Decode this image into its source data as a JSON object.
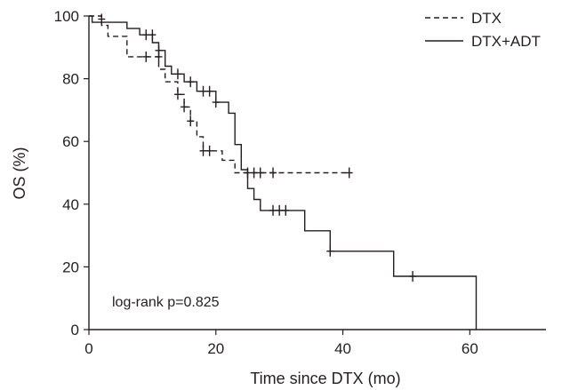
{
  "chart_data": {
    "type": "line",
    "step": true,
    "xlabel": "Time since DTX (mo)",
    "ylabel": "OS (%)",
    "xlim": [
      0,
      72
    ],
    "ylim": [
      0,
      100
    ],
    "xticks": [
      0,
      20,
      40,
      60
    ],
    "yticks": [
      0,
      20,
      40,
      60,
      80,
      100
    ],
    "xtick_labels": [
      "0",
      "20",
      "40",
      "60"
    ],
    "ytick_labels": [
      "0",
      "20",
      "40",
      "60",
      "80",
      "100"
    ],
    "grid": false,
    "legend_position": "top-right",
    "annotation": "log-rank p=0.825",
    "series": [
      {
        "name": "DTX",
        "line_style": "dashed",
        "color": "#231f20",
        "points": [
          [
            0,
            100
          ],
          [
            2,
            100
          ],
          [
            2,
            97
          ],
          [
            3,
            97
          ],
          [
            3,
            93.5
          ],
          [
            6,
            93.5
          ],
          [
            6,
            87
          ],
          [
            11,
            87
          ],
          [
            11,
            83
          ],
          [
            12,
            83
          ],
          [
            12,
            79
          ],
          [
            14,
            79
          ],
          [
            14,
            75
          ],
          [
            15,
            75
          ],
          [
            15,
            71
          ],
          [
            16,
            71
          ],
          [
            16,
            66.5
          ],
          [
            17,
            66.5
          ],
          [
            17,
            61.5
          ],
          [
            18,
            61.5
          ],
          [
            18,
            57
          ],
          [
            21,
            57
          ],
          [
            21,
            54
          ],
          [
            23,
            54
          ],
          [
            23,
            50
          ],
          [
            41,
            50
          ]
        ],
        "censored": [
          [
            2,
            99
          ],
          [
            9,
            87
          ],
          [
            11,
            87
          ],
          [
            14,
            75
          ],
          [
            15,
            71
          ],
          [
            16,
            66.5
          ],
          [
            18,
            57
          ],
          [
            19,
            57
          ],
          [
            25,
            50
          ],
          [
            26,
            50
          ],
          [
            27,
            50
          ],
          [
            29,
            50
          ],
          [
            41,
            50
          ]
        ]
      },
      {
        "name": "DTX+ADT",
        "line_style": "solid",
        "color": "#231f20",
        "points": [
          [
            0,
            100
          ],
          [
            0.5,
            100
          ],
          [
            0.5,
            98
          ],
          [
            6,
            98
          ],
          [
            6,
            96
          ],
          [
            8,
            96
          ],
          [
            8,
            94
          ],
          [
            10,
            94
          ],
          [
            10,
            91.5
          ],
          [
            11,
            91.5
          ],
          [
            11,
            89
          ],
          [
            12,
            89
          ],
          [
            12,
            84
          ],
          [
            13,
            84
          ],
          [
            13,
            81.5
          ],
          [
            15,
            81.5
          ],
          [
            15,
            79
          ],
          [
            17,
            79
          ],
          [
            17,
            76
          ],
          [
            20,
            76
          ],
          [
            20,
            72.5
          ],
          [
            22,
            72.5
          ],
          [
            22,
            69
          ],
          [
            23,
            69
          ],
          [
            23,
            59
          ],
          [
            24,
            59
          ],
          [
            24,
            51
          ],
          [
            25,
            51
          ],
          [
            25,
            45
          ],
          [
            26,
            45
          ],
          [
            26,
            41.5
          ],
          [
            27,
            41.5
          ],
          [
            27,
            38
          ],
          [
            34,
            38
          ],
          [
            34,
            31.5
          ],
          [
            38,
            31.5
          ],
          [
            38,
            25
          ],
          [
            48,
            25
          ],
          [
            48,
            17
          ],
          [
            61,
            17
          ],
          [
            61,
            0
          ]
        ],
        "censored": [
          [
            9,
            94
          ],
          [
            10,
            94
          ],
          [
            11,
            89
          ],
          [
            14,
            81.5
          ],
          [
            16,
            79
          ],
          [
            18,
            76
          ],
          [
            19,
            76
          ],
          [
            20,
            72.5
          ],
          [
            29,
            38
          ],
          [
            30,
            38
          ],
          [
            31,
            38
          ],
          [
            38,
            25
          ],
          [
            51,
            17
          ]
        ]
      }
    ]
  }
}
